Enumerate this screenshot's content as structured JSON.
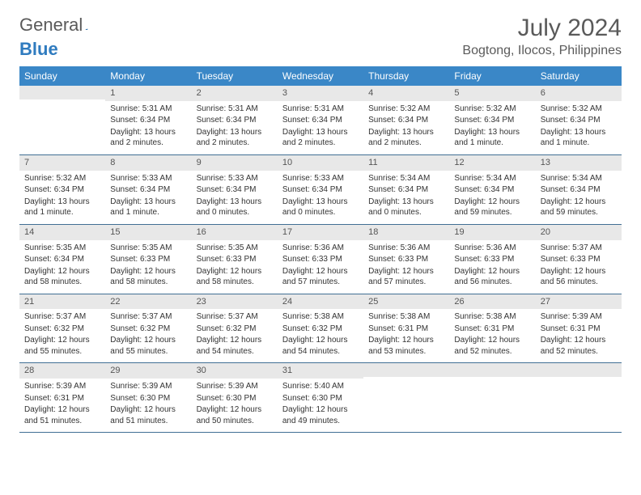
{
  "logo": {
    "word1": "General",
    "word2": "Blue"
  },
  "title": "July 2024",
  "location": "Bogtong, Ilocos, Philippines",
  "weekdays": [
    "Sunday",
    "Monday",
    "Tuesday",
    "Wednesday",
    "Thursday",
    "Friday",
    "Saturday"
  ],
  "colors": {
    "header_bg": "#3a87c7",
    "daynum_bg": "#e8e8e8",
    "week_border": "#416f94",
    "text": "#333333",
    "title_text": "#5a5a5a"
  },
  "weeks": [
    [
      {
        "n": "",
        "sunrise": "",
        "sunset": "",
        "daylight": ""
      },
      {
        "n": "1",
        "sunrise": "Sunrise: 5:31 AM",
        "sunset": "Sunset: 6:34 PM",
        "daylight": "Daylight: 13 hours and 2 minutes."
      },
      {
        "n": "2",
        "sunrise": "Sunrise: 5:31 AM",
        "sunset": "Sunset: 6:34 PM",
        "daylight": "Daylight: 13 hours and 2 minutes."
      },
      {
        "n": "3",
        "sunrise": "Sunrise: 5:31 AM",
        "sunset": "Sunset: 6:34 PM",
        "daylight": "Daylight: 13 hours and 2 minutes."
      },
      {
        "n": "4",
        "sunrise": "Sunrise: 5:32 AM",
        "sunset": "Sunset: 6:34 PM",
        "daylight": "Daylight: 13 hours and 2 minutes."
      },
      {
        "n": "5",
        "sunrise": "Sunrise: 5:32 AM",
        "sunset": "Sunset: 6:34 PM",
        "daylight": "Daylight: 13 hours and 1 minute."
      },
      {
        "n": "6",
        "sunrise": "Sunrise: 5:32 AM",
        "sunset": "Sunset: 6:34 PM",
        "daylight": "Daylight: 13 hours and 1 minute."
      }
    ],
    [
      {
        "n": "7",
        "sunrise": "Sunrise: 5:32 AM",
        "sunset": "Sunset: 6:34 PM",
        "daylight": "Daylight: 13 hours and 1 minute."
      },
      {
        "n": "8",
        "sunrise": "Sunrise: 5:33 AM",
        "sunset": "Sunset: 6:34 PM",
        "daylight": "Daylight: 13 hours and 1 minute."
      },
      {
        "n": "9",
        "sunrise": "Sunrise: 5:33 AM",
        "sunset": "Sunset: 6:34 PM",
        "daylight": "Daylight: 13 hours and 0 minutes."
      },
      {
        "n": "10",
        "sunrise": "Sunrise: 5:33 AM",
        "sunset": "Sunset: 6:34 PM",
        "daylight": "Daylight: 13 hours and 0 minutes."
      },
      {
        "n": "11",
        "sunrise": "Sunrise: 5:34 AM",
        "sunset": "Sunset: 6:34 PM",
        "daylight": "Daylight: 13 hours and 0 minutes."
      },
      {
        "n": "12",
        "sunrise": "Sunrise: 5:34 AM",
        "sunset": "Sunset: 6:34 PM",
        "daylight": "Daylight: 12 hours and 59 minutes."
      },
      {
        "n": "13",
        "sunrise": "Sunrise: 5:34 AM",
        "sunset": "Sunset: 6:34 PM",
        "daylight": "Daylight: 12 hours and 59 minutes."
      }
    ],
    [
      {
        "n": "14",
        "sunrise": "Sunrise: 5:35 AM",
        "sunset": "Sunset: 6:34 PM",
        "daylight": "Daylight: 12 hours and 58 minutes."
      },
      {
        "n": "15",
        "sunrise": "Sunrise: 5:35 AM",
        "sunset": "Sunset: 6:33 PM",
        "daylight": "Daylight: 12 hours and 58 minutes."
      },
      {
        "n": "16",
        "sunrise": "Sunrise: 5:35 AM",
        "sunset": "Sunset: 6:33 PM",
        "daylight": "Daylight: 12 hours and 58 minutes."
      },
      {
        "n": "17",
        "sunrise": "Sunrise: 5:36 AM",
        "sunset": "Sunset: 6:33 PM",
        "daylight": "Daylight: 12 hours and 57 minutes."
      },
      {
        "n": "18",
        "sunrise": "Sunrise: 5:36 AM",
        "sunset": "Sunset: 6:33 PM",
        "daylight": "Daylight: 12 hours and 57 minutes."
      },
      {
        "n": "19",
        "sunrise": "Sunrise: 5:36 AM",
        "sunset": "Sunset: 6:33 PM",
        "daylight": "Daylight: 12 hours and 56 minutes."
      },
      {
        "n": "20",
        "sunrise": "Sunrise: 5:37 AM",
        "sunset": "Sunset: 6:33 PM",
        "daylight": "Daylight: 12 hours and 56 minutes."
      }
    ],
    [
      {
        "n": "21",
        "sunrise": "Sunrise: 5:37 AM",
        "sunset": "Sunset: 6:32 PM",
        "daylight": "Daylight: 12 hours and 55 minutes."
      },
      {
        "n": "22",
        "sunrise": "Sunrise: 5:37 AM",
        "sunset": "Sunset: 6:32 PM",
        "daylight": "Daylight: 12 hours and 55 minutes."
      },
      {
        "n": "23",
        "sunrise": "Sunrise: 5:37 AM",
        "sunset": "Sunset: 6:32 PM",
        "daylight": "Daylight: 12 hours and 54 minutes."
      },
      {
        "n": "24",
        "sunrise": "Sunrise: 5:38 AM",
        "sunset": "Sunset: 6:32 PM",
        "daylight": "Daylight: 12 hours and 54 minutes."
      },
      {
        "n": "25",
        "sunrise": "Sunrise: 5:38 AM",
        "sunset": "Sunset: 6:31 PM",
        "daylight": "Daylight: 12 hours and 53 minutes."
      },
      {
        "n": "26",
        "sunrise": "Sunrise: 5:38 AM",
        "sunset": "Sunset: 6:31 PM",
        "daylight": "Daylight: 12 hours and 52 minutes."
      },
      {
        "n": "27",
        "sunrise": "Sunrise: 5:39 AM",
        "sunset": "Sunset: 6:31 PM",
        "daylight": "Daylight: 12 hours and 52 minutes."
      }
    ],
    [
      {
        "n": "28",
        "sunrise": "Sunrise: 5:39 AM",
        "sunset": "Sunset: 6:31 PM",
        "daylight": "Daylight: 12 hours and 51 minutes."
      },
      {
        "n": "29",
        "sunrise": "Sunrise: 5:39 AM",
        "sunset": "Sunset: 6:30 PM",
        "daylight": "Daylight: 12 hours and 51 minutes."
      },
      {
        "n": "30",
        "sunrise": "Sunrise: 5:39 AM",
        "sunset": "Sunset: 6:30 PM",
        "daylight": "Daylight: 12 hours and 50 minutes."
      },
      {
        "n": "31",
        "sunrise": "Sunrise: 5:40 AM",
        "sunset": "Sunset: 6:30 PM",
        "daylight": "Daylight: 12 hours and 49 minutes."
      },
      {
        "n": "",
        "sunrise": "",
        "sunset": "",
        "daylight": ""
      },
      {
        "n": "",
        "sunrise": "",
        "sunset": "",
        "daylight": ""
      },
      {
        "n": "",
        "sunrise": "",
        "sunset": "",
        "daylight": ""
      }
    ]
  ]
}
